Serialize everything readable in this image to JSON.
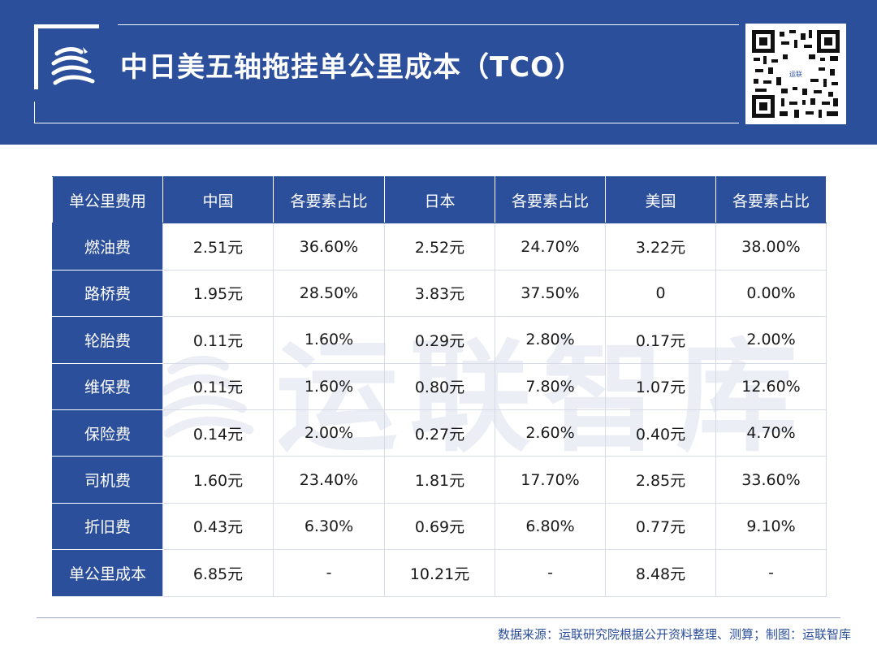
{
  "header": {
    "title": "中日美五轴拖挂单公里成本（TCO）",
    "background_color": "#2c4f9c",
    "logo_icon": "yunlian-logo-icon",
    "qr_icon": "qr-code-icon",
    "qr_label": "运联"
  },
  "table": {
    "columns": [
      "单公里费用",
      "中国",
      "各要素占比",
      "日本",
      "各要素占比",
      "美国",
      "各要素占比"
    ],
    "rows": [
      [
        "燃油费",
        "2.51元",
        "36.60%",
        "2.52元",
        "24.70%",
        "3.22元",
        "38.00%"
      ],
      [
        "路桥费",
        "1.95元",
        "28.50%",
        "3.83元",
        "37.50%",
        "0",
        "0.00%"
      ],
      [
        "轮胎费",
        "0.11元",
        "1.60%",
        "0.29元",
        "2.80%",
        "0.17元",
        "2.00%"
      ],
      [
        "维保费",
        "0.11元",
        "1.60%",
        "0.80元",
        "7.80%",
        "1.07元",
        "12.60%"
      ],
      [
        "保险费",
        "0.14元",
        "2.00%",
        "0.27元",
        "2.60%",
        "0.40元",
        "4.70%"
      ],
      [
        "司机费",
        "1.60元",
        "23.40%",
        "1.81元",
        "17.70%",
        "2.85元",
        "33.60%"
      ],
      [
        "折旧费",
        "0.43元",
        "6.30%",
        "0.69元",
        "6.80%",
        "0.77元",
        "9.10%"
      ],
      [
        "单公里成本",
        "6.85元",
        "-",
        "10.21元",
        "-",
        "8.48元",
        "-"
      ]
    ]
  },
  "watermark": {
    "text": "运联智库"
  },
  "footer": {
    "source": "数据来源：运联研究院根据公开资料整理、测算；制图：运联智库"
  }
}
